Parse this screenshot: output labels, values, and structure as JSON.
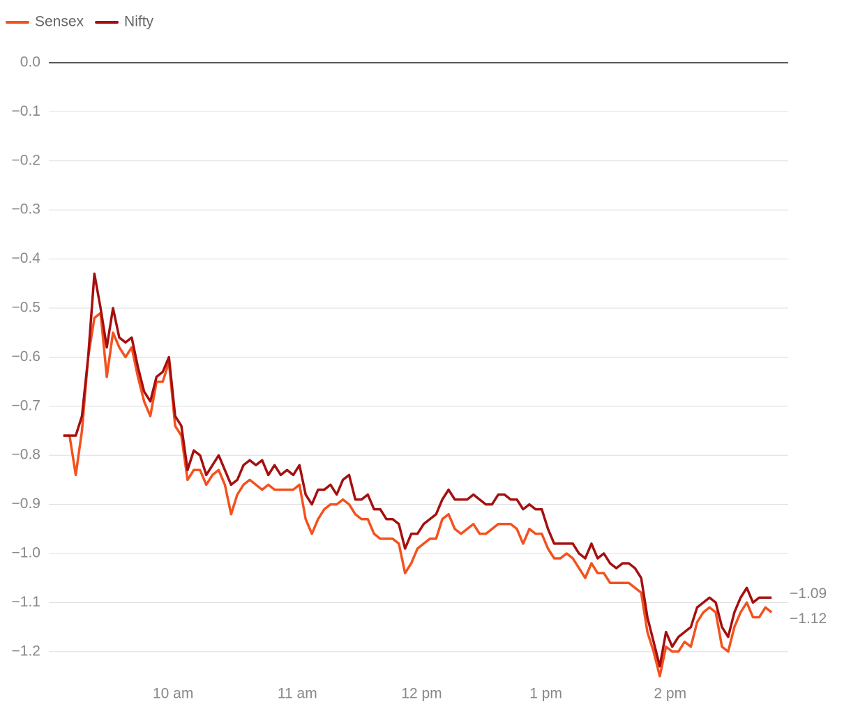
{
  "chart_data": {
    "type": "line",
    "x": [
      547,
      550,
      553,
      556,
      559,
      562,
      565,
      568,
      571,
      574,
      577,
      580,
      583,
      586,
      589,
      592,
      595,
      598,
      601,
      604,
      607,
      610,
      613,
      616,
      619,
      622,
      625,
      628,
      631,
      634,
      637,
      640,
      643,
      646,
      649,
      652,
      655,
      658,
      661,
      664,
      667,
      670,
      673,
      676,
      679,
      682,
      685,
      688,
      691,
      694,
      697,
      700,
      703,
      706,
      709,
      712,
      715,
      718,
      721,
      724,
      727,
      730,
      733,
      736,
      739,
      742,
      745,
      748,
      751,
      754,
      757,
      760,
      763,
      766,
      769,
      772,
      775,
      778,
      781,
      784,
      787,
      790,
      793,
      796,
      799,
      802,
      805,
      808,
      811,
      814,
      817,
      820,
      823,
      826,
      829,
      832,
      835,
      838,
      841,
      844,
      847,
      850,
      853,
      856,
      859,
      862,
      865,
      868,
      871,
      874,
      877,
      880,
      883,
      886,
      889
    ],
    "series": [
      {
        "name": "Sensex",
        "color": "#f4511e",
        "last_label": "−1.12",
        "values": [
          -0.76,
          -0.76,
          -0.84,
          -0.75,
          -0.6,
          -0.52,
          -0.51,
          -0.64,
          -0.55,
          -0.58,
          -0.6,
          -0.58,
          -0.64,
          -0.69,
          -0.72,
          -0.65,
          -0.65,
          -0.61,
          -0.74,
          -0.76,
          -0.85,
          -0.83,
          -0.83,
          -0.86,
          -0.84,
          -0.83,
          -0.86,
          -0.92,
          -0.88,
          -0.86,
          -0.85,
          -0.86,
          -0.87,
          -0.86,
          -0.87,
          -0.87,
          -0.87,
          -0.87,
          -0.86,
          -0.93,
          -0.96,
          -0.93,
          -0.91,
          -0.9,
          -0.9,
          -0.89,
          -0.9,
          -0.92,
          -0.93,
          -0.93,
          -0.96,
          -0.97,
          -0.97,
          -0.97,
          -0.98,
          -1.04,
          -1.02,
          -0.99,
          -0.98,
          -0.97,
          -0.97,
          -0.93,
          -0.92,
          -0.95,
          -0.96,
          -0.95,
          -0.94,
          -0.96,
          -0.96,
          -0.95,
          -0.94,
          -0.94,
          -0.94,
          -0.95,
          -0.98,
          -0.95,
          -0.96,
          -0.96,
          -0.99,
          -1.01,
          -1.01,
          -1.0,
          -1.01,
          -1.03,
          -1.05,
          -1.02,
          -1.04,
          -1.04,
          -1.06,
          -1.06,
          -1.06,
          -1.06,
          -1.07,
          -1.08,
          -1.16,
          -1.2,
          -1.25,
          -1.19,
          -1.2,
          -1.2,
          -1.18,
          -1.19,
          -1.14,
          -1.12,
          -1.11,
          -1.12,
          -1.19,
          -1.2,
          -1.15,
          -1.12,
          -1.1,
          -1.13,
          -1.13,
          -1.11,
          -1.12
        ]
      },
      {
        "name": "Nifty",
        "color": "#a50f0f",
        "last_label": "−1.09",
        "values": [
          -0.76,
          -0.76,
          -0.76,
          -0.72,
          -0.6,
          -0.43,
          -0.5,
          -0.58,
          -0.5,
          -0.56,
          -0.57,
          -0.56,
          -0.62,
          -0.67,
          -0.69,
          -0.64,
          -0.63,
          -0.6,
          -0.72,
          -0.74,
          -0.83,
          -0.79,
          -0.8,
          -0.84,
          -0.82,
          -0.8,
          -0.83,
          -0.86,
          -0.85,
          -0.82,
          -0.81,
          -0.82,
          -0.81,
          -0.84,
          -0.82,
          -0.84,
          -0.83,
          -0.84,
          -0.82,
          -0.88,
          -0.9,
          -0.87,
          -0.87,
          -0.86,
          -0.88,
          -0.85,
          -0.84,
          -0.89,
          -0.89,
          -0.88,
          -0.91,
          -0.91,
          -0.93,
          -0.93,
          -0.94,
          -0.99,
          -0.96,
          -0.96,
          -0.94,
          -0.93,
          -0.92,
          -0.89,
          -0.87,
          -0.89,
          -0.89,
          -0.89,
          -0.88,
          -0.89,
          -0.9,
          -0.9,
          -0.88,
          -0.88,
          -0.89,
          -0.89,
          -0.91,
          -0.9,
          -0.91,
          -0.91,
          -0.95,
          -0.98,
          -0.98,
          -0.98,
          -0.98,
          -1.0,
          -1.01,
          -0.98,
          -1.01,
          -1.0,
          -1.02,
          -1.03,
          -1.02,
          -1.02,
          -1.03,
          -1.05,
          -1.13,
          -1.18,
          -1.23,
          -1.16,
          -1.19,
          -1.17,
          -1.16,
          -1.15,
          -1.11,
          -1.1,
          -1.09,
          -1.1,
          -1.15,
          -1.17,
          -1.12,
          -1.09,
          -1.07,
          -1.1,
          -1.09,
          -1.09,
          -1.09
        ]
      }
    ],
    "xlim": [
      540,
      897
    ],
    "xticks": [
      {
        "value": 600,
        "label": "10 am"
      },
      {
        "value": 660,
        "label": "11 am"
      },
      {
        "value": 720,
        "label": "12 pm"
      },
      {
        "value": 780,
        "label": "1 pm"
      },
      {
        "value": 840,
        "label": "2 pm"
      }
    ],
    "ylim": [
      -1.25,
      0
    ],
    "yticks": [
      {
        "value": 0,
        "label": "0.0"
      },
      {
        "value": -0.1,
        "label": "−0.1"
      },
      {
        "value": -0.2,
        "label": "−0.2"
      },
      {
        "value": -0.3,
        "label": "−0.3"
      },
      {
        "value": -0.4,
        "label": "−0.4"
      },
      {
        "value": -0.5,
        "label": "−0.5"
      },
      {
        "value": -0.6,
        "label": "−0.6"
      },
      {
        "value": -0.7,
        "label": "−0.7"
      },
      {
        "value": -0.8,
        "label": "−0.8"
      },
      {
        "value": -0.9,
        "label": "−0.9"
      },
      {
        "value": -1.0,
        "label": "−1.0"
      },
      {
        "value": -1.1,
        "label": "−1.1"
      },
      {
        "value": -1.2,
        "label": "−1.2"
      }
    ],
    "grid": true,
    "legend": "top-left"
  }
}
